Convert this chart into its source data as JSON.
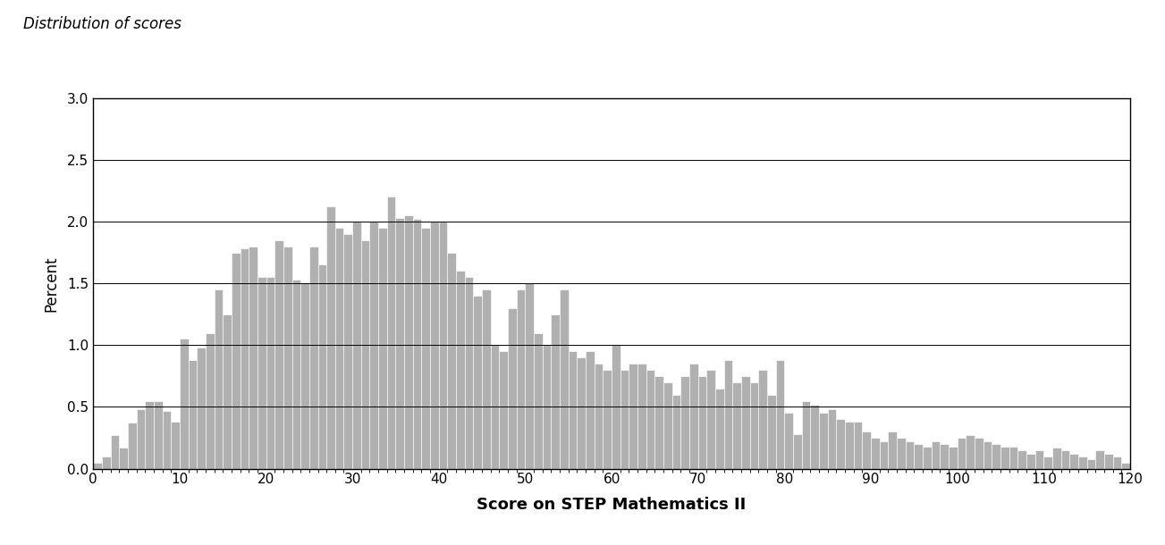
{
  "title": "Distribution of scores",
  "xlabel": "Score on STEP Mathematics II",
  "ylabel": "Percent",
  "xlim": [
    0,
    120
  ],
  "ylim": [
    0,
    3.0
  ],
  "yticks": [
    0.0,
    0.5,
    1.0,
    1.5,
    2.0,
    2.5,
    3.0
  ],
  "xticks": [
    0,
    10,
    20,
    30,
    40,
    50,
    60,
    70,
    80,
    90,
    100,
    110,
    120
  ],
  "bar_color": "#b0b0b0",
  "bar_edgecolor": "#ffffff",
  "background_color": "#ffffff",
  "values": [
    0.05,
    0.1,
    0.27,
    0.17,
    0.37,
    0.48,
    0.55,
    0.55,
    0.47,
    0.38,
    1.05,
    0.88,
    0.98,
    1.1,
    1.45,
    1.25,
    1.75,
    1.78,
    1.8,
    1.55,
    1.55,
    1.85,
    1.8,
    1.53,
    1.5,
    1.8,
    1.65,
    2.12,
    1.95,
    1.9,
    2.0,
    1.85,
    2.0,
    1.95,
    2.2,
    2.03,
    2.05,
    2.02,
    1.95,
    2.0,
    2.0,
    1.75,
    1.6,
    1.55,
    1.4,
    1.45,
    1.0,
    0.95,
    1.3,
    1.45,
    1.5,
    1.1,
    1.0,
    1.25,
    1.45,
    0.95,
    0.9,
    0.95,
    0.85,
    0.8,
    1.0,
    0.8,
    0.85,
    0.85,
    0.8,
    0.75,
    0.7,
    0.6,
    0.75,
    0.85,
    0.75,
    0.8,
    0.65,
    0.88,
    0.7,
    0.75,
    0.7,
    0.8,
    0.6,
    0.88,
    0.45,
    0.28,
    0.55,
    0.52,
    0.45,
    0.48,
    0.4,
    0.38,
    0.38,
    0.3,
    0.25,
    0.22,
    0.3,
    0.25,
    0.22,
    0.2,
    0.18,
    0.22,
    0.2,
    0.18,
    0.25,
    0.27,
    0.25,
    0.22,
    0.2,
    0.18,
    0.18,
    0.15,
    0.12,
    0.15,
    0.1,
    0.17,
    0.15,
    0.12,
    0.1,
    0.08,
    0.15,
    0.12,
    0.1,
    0.05
  ]
}
